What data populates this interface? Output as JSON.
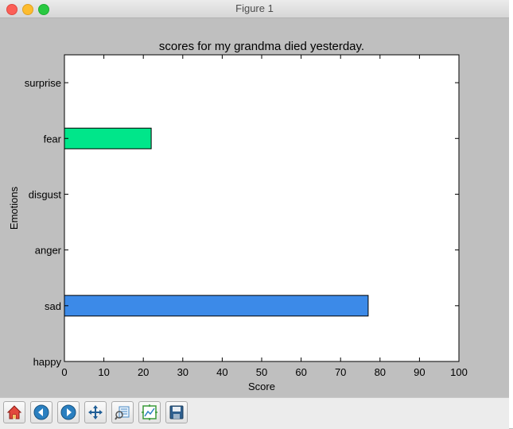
{
  "window": {
    "title": "Figure 1"
  },
  "toolbar": {
    "buttons": [
      {
        "name": "home-button",
        "icon": "home-icon"
      },
      {
        "name": "back-button",
        "icon": "back-arrow-icon"
      },
      {
        "name": "forward-button",
        "icon": "forward-arrow-icon"
      },
      {
        "name": "pan-button",
        "icon": "move-icon"
      },
      {
        "name": "zoom-button",
        "icon": "zoom-rect-icon"
      },
      {
        "name": "subplots-button",
        "icon": "subplots-icon"
      },
      {
        "name": "save-button",
        "icon": "save-icon"
      }
    ]
  },
  "chart_data": {
    "type": "bar",
    "orientation": "horizontal",
    "title": "scores for my grandma died yesterday.",
    "xlabel": "Score",
    "ylabel": "Emotions",
    "categories": [
      "happy",
      "sad",
      "anger",
      "disgust",
      "fear",
      "surprise"
    ],
    "values": [
      0,
      77,
      0,
      0,
      22,
      0
    ],
    "colors": [
      "#3c8ae8",
      "#3c8ae8",
      "#3c8ae8",
      "#3c8ae8",
      "#00e68a",
      "#3c8ae8"
    ],
    "xlim": [
      0,
      100
    ],
    "xticks": [
      0,
      10,
      20,
      30,
      40,
      50,
      60,
      70,
      80,
      90,
      100
    ],
    "grid": false
  }
}
